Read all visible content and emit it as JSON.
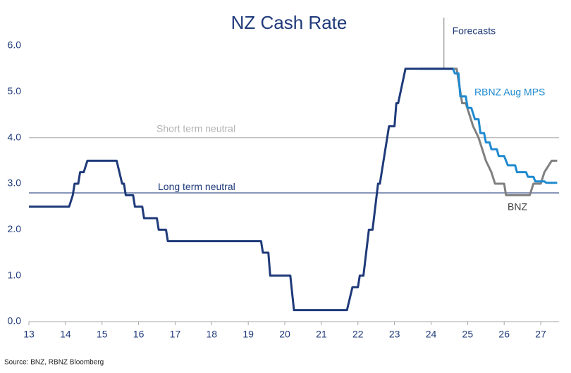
{
  "chart_data": {
    "type": "line",
    "title": "NZ Cash Rate",
    "xlim": [
      13,
      27.5
    ],
    "xticks": [
      13,
      14,
      15,
      16,
      17,
      18,
      19,
      20,
      21,
      22,
      23,
      24,
      25,
      26,
      27
    ],
    "ylim": [
      0,
      6
    ],
    "yticks": [
      {
        "value": 0,
        "label": "0.0"
      },
      {
        "value": 1,
        "label": "1.0"
      },
      {
        "value": 2,
        "label": "2.0"
      },
      {
        "value": 3,
        "label": "3.0"
      },
      {
        "value": 4,
        "label": "4.0"
      },
      {
        "value": 5,
        "label": "5.0"
      },
      {
        "value": 6,
        "label": "6.0"
      }
    ],
    "hlines": [
      {
        "label": "Short term neutral",
        "value": 4.0,
        "color": "#b3b3b3"
      },
      {
        "label": "Long term neutral",
        "value": 2.8,
        "color": "#1f3a7a"
      }
    ],
    "vline": {
      "label": "Forecasts",
      "x": 24.35,
      "color": "#a6a6a6"
    },
    "series": [
      {
        "name": "BNZ",
        "color": "#808080",
        "x": [
          23.7,
          24.7,
          24.8,
          24.85,
          24.95,
          25.05,
          25.15,
          25.3,
          25.4,
          25.5,
          25.65,
          25.75,
          26,
          26.05,
          26.7,
          26.8,
          27.0,
          27.1,
          27.3,
          27.45
        ],
        "values": [
          5.5,
          5.5,
          5.0,
          4.75,
          4.75,
          4.5,
          4.25,
          4.0,
          3.75,
          3.5,
          3.25,
          3.0,
          3.0,
          2.75,
          2.75,
          3.0,
          3.0,
          3.25,
          3.5,
          3.5
        ]
      },
      {
        "name": "RBNZ Aug MPS",
        "color": "#1f8ad0",
        "x": [
          23.7,
          24.6,
          24.65,
          24.75,
          24.8,
          24.95,
          25,
          25.1,
          25.2,
          25.3,
          25.35,
          25.45,
          25.5,
          25.6,
          25.65,
          25.8,
          25.85,
          26,
          26.1,
          26.3,
          26.35,
          26.6,
          26.65,
          26.8,
          26.85,
          27.1,
          27.15,
          27.45
        ],
        "values": [
          5.5,
          5.5,
          5.4,
          5.4,
          4.9,
          4.9,
          4.65,
          4.65,
          4.4,
          4.4,
          4.1,
          4.1,
          3.9,
          3.9,
          3.75,
          3.75,
          3.6,
          3.6,
          3.4,
          3.4,
          3.25,
          3.25,
          3.15,
          3.15,
          3.05,
          3.05,
          3.02,
          3.02
        ]
      },
      {
        "color": "#1f3a7a",
        "x": [
          13,
          14.1,
          14.2,
          14.25,
          14.35,
          14.4,
          14.5,
          14.6,
          15.4,
          15.55,
          15.6,
          15.65,
          15.85,
          15.9,
          16.1,
          16.15,
          16.5,
          16.55,
          16.75,
          16.8,
          19.35,
          19.4,
          19.55,
          19.6,
          20.15,
          20.25,
          21.7,
          21.85,
          22.0,
          22.05,
          22.15,
          22.3,
          22.4,
          22.55,
          22.6,
          22.85,
          23.0,
          23.05,
          23.1,
          23.3,
          24.6
        ],
        "values": [
          2.5,
          2.5,
          2.75,
          3.0,
          3.0,
          3.25,
          3.25,
          3.5,
          3.5,
          3.0,
          3.0,
          2.75,
          2.75,
          2.5,
          2.5,
          2.25,
          2.25,
          2.0,
          2.0,
          1.75,
          1.75,
          1.5,
          1.5,
          1.0,
          1.0,
          0.25,
          0.25,
          0.75,
          0.75,
          1.0,
          1.0,
          2.0,
          2.0,
          3.0,
          3.0,
          4.25,
          4.25,
          4.75,
          4.75,
          5.5,
          5.5
        ]
      }
    ],
    "source": "Source: BNZ, RBNZ Bloomberg"
  }
}
